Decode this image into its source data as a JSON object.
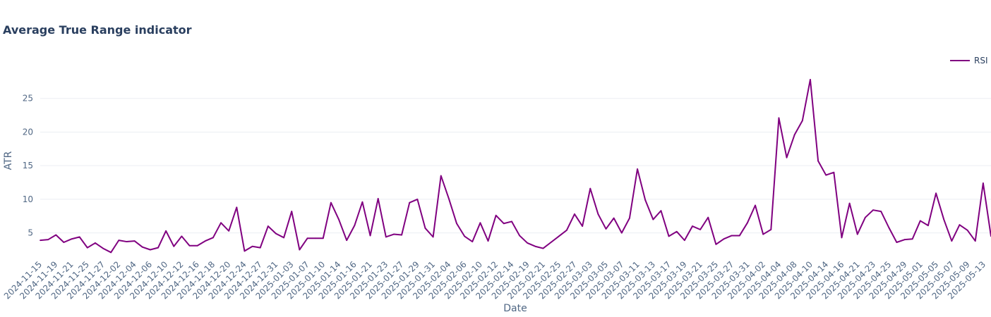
{
  "chart_data": {
    "type": "line",
    "title": "Average True Range indicator",
    "xlabel": "Date",
    "ylabel": "ATR",
    "ylim": [
      1.4,
      30
    ],
    "y_ticks": [
      5,
      10,
      15,
      20,
      25
    ],
    "grid": true,
    "legend_position": "top-right",
    "colors": {
      "series": "#800080",
      "grid": "#ebeef3",
      "axis_text": "#506784",
      "title": "#2a3f5f"
    },
    "x_tick_labels": [
      "2024-11-15",
      "2024-11-19",
      "2024-11-21",
      "2024-11-25",
      "2024-11-27",
      "2024-12-02",
      "2024-12-04",
      "2024-12-06",
      "2024-12-10",
      "2024-12-12",
      "2024-12-16",
      "2024-12-18",
      "2024-12-20",
      "2024-12-24",
      "2024-12-27",
      "2024-12-31",
      "2025-01-03",
      "2025-01-07",
      "2025-01-10",
      "2025-01-14",
      "2025-01-16",
      "2025-01-21",
      "2025-01-23",
      "2025-01-27",
      "2025-01-29",
      "2025-01-31",
      "2025-02-04",
      "2025-02-06",
      "2025-02-10",
      "2025-02-12",
      "2025-02-14",
      "2025-02-19",
      "2025-02-21",
      "2025-02-25",
      "2025-02-27",
      "2025-03-03",
      "2025-03-05",
      "2025-03-07",
      "2025-03-11",
      "2025-03-13",
      "2025-03-17",
      "2025-03-19",
      "2025-03-21",
      "2025-03-25",
      "2025-03-27",
      "2025-03-31",
      "2025-04-02",
      "2025-04-04",
      "2025-04-08",
      "2025-04-10",
      "2025-04-14",
      "2025-04-16",
      "2025-04-21",
      "2025-04-23",
      "2025-04-25",
      "2025-04-29",
      "2025-05-01",
      "2025-05-05",
      "2025-05-07",
      "2025-05-09",
      "2025-05-13"
    ],
    "series": [
      {
        "name": "RSI",
        "values": [
          3.9,
          4.0,
          4.7,
          3.6,
          4.1,
          4.4,
          2.8,
          3.5,
          2.7,
          2.1,
          3.9,
          3.7,
          3.8,
          2.9,
          2.5,
          2.8,
          5.3,
          3.0,
          4.5,
          3.1,
          3.1,
          3.8,
          4.3,
          6.5,
          5.3,
          8.8,
          2.3,
          3.0,
          2.8,
          6.0,
          4.9,
          4.3,
          8.2,
          2.5,
          4.2,
          4.2,
          4.2,
          9.5,
          7.0,
          3.9,
          6.1,
          9.6,
          4.6,
          10.1,
          4.4,
          4.8,
          4.7,
          9.5,
          10.0,
          5.7,
          4.4,
          13.5,
          10.1,
          6.4,
          4.5,
          3.7,
          6.5,
          3.8,
          7.6,
          6.4,
          6.7,
          4.6,
          3.5,
          3.0,
          2.7,
          3.6,
          4.5,
          5.4,
          7.8,
          6.0,
          11.6,
          7.8,
          5.6,
          7.2,
          5.0,
          7.2,
          14.5,
          9.9,
          7.0,
          8.3,
          4.5,
          5.2,
          3.9,
          6.0,
          5.5,
          7.3,
          3.3,
          4.1,
          4.6,
          4.6,
          6.5,
          9.1,
          4.8,
          5.5,
          22.1,
          16.2,
          19.6,
          21.7,
          27.8,
          15.7,
          13.6,
          14.0,
          4.3,
          9.4,
          4.8,
          7.3,
          8.4,
          8.2,
          5.8,
          3.6,
          4.0,
          4.1,
          6.8,
          6.1,
          10.9,
          7.0,
          3.8,
          6.2,
          5.4,
          3.8,
          12.4,
          4.5
        ]
      }
    ]
  }
}
